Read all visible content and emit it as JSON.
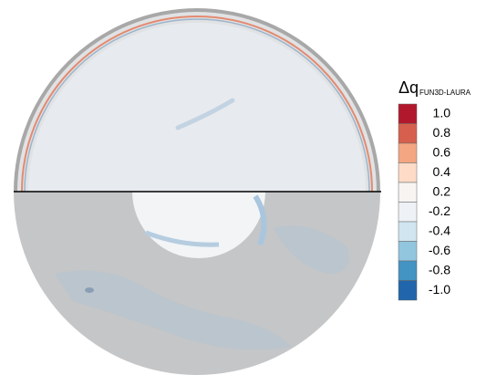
{
  "colorbar": {
    "title": "Δq",
    "subscript": "FUN3D-LAURA",
    "labels": [
      "1.0",
      "0.8",
      "0.6",
      "0.4",
      "0.2",
      "-0.2",
      "-0.4",
      "-0.6",
      "-0.8",
      "-1.0"
    ],
    "colors": [
      "#b2182b",
      "#d6604d",
      "#f4a582",
      "#fddbc7",
      "#f7f4f2",
      "#eef2f6",
      "#d1e5f0",
      "#92c5de",
      "#4393c3",
      "#2166ac"
    ]
  }
}
